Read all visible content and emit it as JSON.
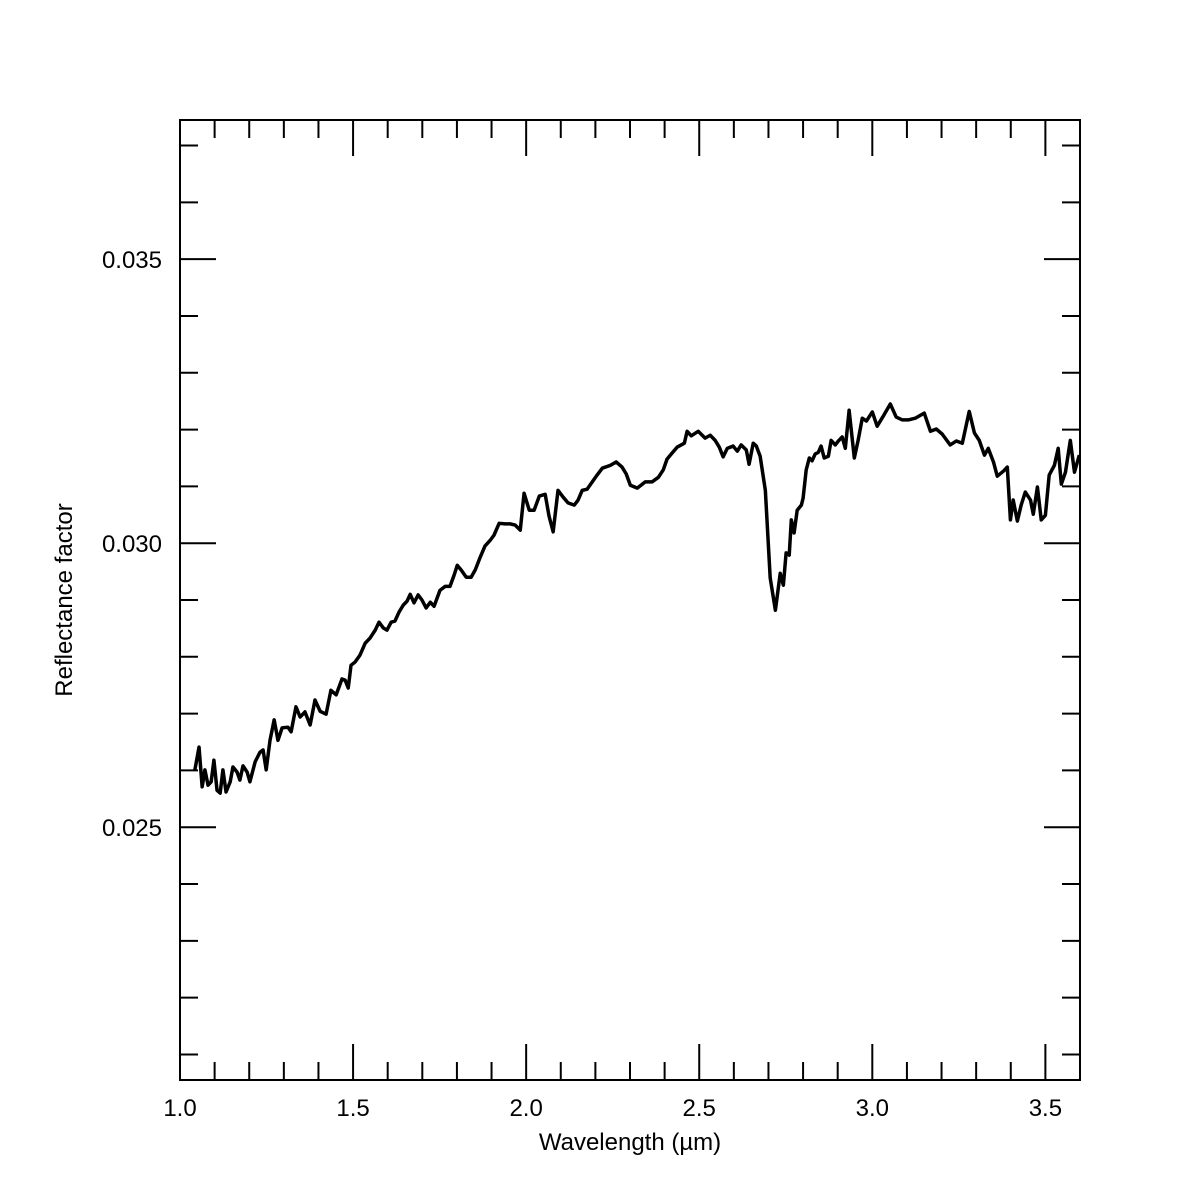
{
  "chart_data": {
    "type": "line",
    "x_label": "Wavelength (µm)",
    "y_label": "Reflectance factor",
    "color": "#000000",
    "xlim": [
      1.0,
      3.6
    ],
    "xticks": [
      {
        "value": 1.0,
        "label": "1.0"
      },
      1.5,
      {
        "value": 2.0,
        "label": "2.0"
      },
      2.5,
      {
        "value": 3.0,
        "label": "3.0"
      },
      3.5
    ],
    "xminorticks": [
      1.1,
      1.2,
      1.3,
      1.4,
      1.6,
      1.7,
      1.8,
      1.9,
      2.1,
      2.2,
      2.3,
      2.4,
      2.6,
      2.7,
      2.8,
      2.9,
      3.1,
      3.2,
      3.3,
      3.4
    ],
    "ylim": [
      0.02055,
      0.03745
    ],
    "yticks": [
      0.025,
      {
        "value": 0.03,
        "label": "0.030"
      },
      0.035
    ],
    "yminorticks": [
      0.021,
      0.022,
      0.023,
      0.024,
      0.026,
      0.027,
      0.028,
      0.029,
      0.031,
      0.032,
      0.033,
      0.034,
      0.036,
      0.037
    ],
    "x": [
      1.043,
      1.055,
      1.064,
      1.072,
      1.081,
      1.09,
      1.098,
      1.107,
      1.116,
      1.124,
      1.133,
      1.145,
      1.153,
      1.165,
      1.173,
      1.182,
      1.194,
      1.202,
      1.217,
      1.231,
      1.24,
      1.249,
      1.26,
      1.272,
      1.283,
      1.295,
      1.312,
      1.321,
      1.335,
      1.347,
      1.361,
      1.376,
      1.39,
      1.405,
      1.422,
      1.436,
      1.451,
      1.468,
      1.477,
      1.486,
      1.494,
      1.506,
      1.52,
      1.535,
      1.549,
      1.564,
      1.575,
      1.587,
      1.598,
      1.61,
      1.621,
      1.633,
      1.645,
      1.656,
      1.665,
      1.676,
      1.688,
      1.699,
      1.711,
      1.723,
      1.734,
      1.751,
      1.766,
      1.78,
      1.792,
      1.801,
      1.812,
      1.827,
      1.841,
      1.853,
      1.867,
      1.881,
      1.896,
      1.907,
      1.922,
      1.939,
      1.954,
      1.968,
      1.983,
      1.994,
      2.009,
      2.023,
      2.038,
      2.055,
      2.066,
      2.078,
      2.092,
      2.107,
      2.121,
      2.139,
      2.15,
      2.162,
      2.176,
      2.191,
      2.205,
      2.22,
      2.243,
      2.26,
      2.277,
      2.289,
      2.301,
      2.321,
      2.344,
      2.364,
      2.382,
      2.396,
      2.407,
      2.422,
      2.436,
      2.457,
      2.465,
      2.477,
      2.497,
      2.517,
      2.532,
      2.546,
      2.558,
      2.569,
      2.581,
      2.598,
      2.61,
      2.621,
      2.636,
      2.644,
      2.656,
      2.665,
      2.676,
      2.691,
      2.705,
      2.72,
      2.734,
      2.743,
      2.751,
      2.76,
      2.766,
      2.774,
      2.783,
      2.795,
      2.8,
      2.809,
      2.818,
      2.826,
      2.835,
      2.844,
      2.852,
      2.861,
      2.873,
      2.881,
      2.893,
      2.902,
      2.913,
      2.922,
      2.933,
      2.948,
      2.959,
      2.971,
      2.983,
      3.0,
      3.014,
      3.032,
      3.052,
      3.069,
      3.087,
      3.104,
      3.124,
      3.15,
      3.168,
      3.185,
      3.202,
      3.225,
      3.243,
      3.26,
      3.28,
      3.295,
      3.309,
      3.324,
      3.335,
      3.35,
      3.361,
      3.379,
      3.39,
      3.399,
      3.407,
      3.419,
      3.43,
      3.442,
      3.457,
      3.465,
      3.477,
      3.488,
      3.5,
      3.511,
      3.526,
      3.537,
      3.546,
      3.558,
      3.572,
      3.584,
      3.598
    ],
    "values": [
      0.02601,
      0.02641,
      0.02571,
      0.02601,
      0.02574,
      0.0258,
      0.02618,
      0.02565,
      0.0256,
      0.02601,
      0.02562,
      0.0258,
      0.02606,
      0.02597,
      0.02583,
      0.02608,
      0.02597,
      0.0258,
      0.02615,
      0.02632,
      0.02636,
      0.02601,
      0.02653,
      0.02689,
      0.02653,
      0.02675,
      0.02676,
      0.02668,
      0.02712,
      0.02694,
      0.02703,
      0.0268,
      0.02724,
      0.02704,
      0.02699,
      0.02741,
      0.02733,
      0.02761,
      0.02759,
      0.02745,
      0.02785,
      0.02791,
      0.02803,
      0.02824,
      0.02833,
      0.02847,
      0.02861,
      0.02851,
      0.02847,
      0.02861,
      0.02863,
      0.02879,
      0.02891,
      0.02898,
      0.0291,
      0.02895,
      0.02909,
      0.029,
      0.02886,
      0.02896,
      0.02889,
      0.02917,
      0.02924,
      0.02924,
      0.02944,
      0.02961,
      0.02953,
      0.0294,
      0.0294,
      0.02953,
      0.02975,
      0.02995,
      0.03005,
      0.03014,
      0.03035,
      0.03034,
      0.03034,
      0.03032,
      0.03023,
      0.03088,
      0.03058,
      0.03058,
      0.03083,
      0.03086,
      0.03048,
      0.0302,
      0.03093,
      0.03081,
      0.03071,
      0.03067,
      0.03076,
      0.03093,
      0.03095,
      0.03108,
      0.0312,
      0.03132,
      0.03137,
      0.03143,
      0.03134,
      0.03122,
      0.03102,
      0.03097,
      0.03108,
      0.03108,
      0.03116,
      0.03129,
      0.03148,
      0.03159,
      0.03169,
      0.03176,
      0.03197,
      0.03189,
      0.03197,
      0.03185,
      0.0319,
      0.03181,
      0.03169,
      0.03152,
      0.03167,
      0.03171,
      0.03162,
      0.03173,
      0.03164,
      0.03139,
      0.03176,
      0.03171,
      0.03153,
      0.03093,
      0.02939,
      0.02882,
      0.02947,
      0.02926,
      0.02983,
      0.02979,
      0.03041,
      0.03018,
      0.03058,
      0.03067,
      0.03079,
      0.03129,
      0.0315,
      0.03145,
      0.03157,
      0.0316,
      0.03171,
      0.0315,
      0.03153,
      0.03181,
      0.03173,
      0.0318,
      0.03187,
      0.03167,
      0.03234,
      0.0315,
      0.03181,
      0.0322,
      0.03215,
      0.03231,
      0.03206,
      0.03224,
      0.03245,
      0.03222,
      0.03217,
      0.03217,
      0.0322,
      0.03229,
      0.03197,
      0.03201,
      0.03192,
      0.03173,
      0.0318,
      0.03176,
      0.03232,
      0.03194,
      0.03181,
      0.03155,
      0.03167,
      0.03143,
      0.03118,
      0.03127,
      0.03134,
      0.03041,
      0.03076,
      0.03039,
      0.03067,
      0.0309,
      0.03076,
      0.03051,
      0.03099,
      0.03041,
      0.03049,
      0.0312,
      0.03137,
      0.03167,
      0.03104,
      0.03125,
      0.03181,
      0.03125,
      0.03155
    ]
  }
}
